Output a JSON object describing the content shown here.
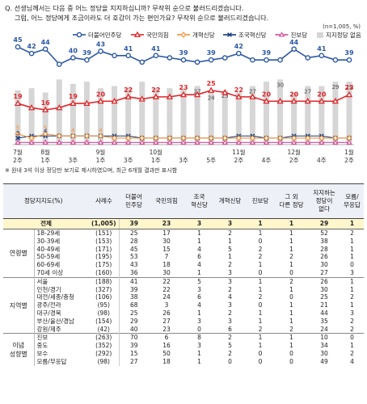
{
  "question": {
    "line1": "Q. 선생님께서는 다음 중 어느 정당을 지지하십니까? 무작위 순으로 불러드리겠습니다.",
    "line2": "그럼, 어느 정당에게 조금이라도 더 호감이 가는 편인가요? 무작위 순으로 불러드리겠습니다.",
    "sample": "(n=1,005, %)"
  },
  "chart_data": {
    "type": "line",
    "x": [
      "7월 2주",
      "",
      "8월 1주",
      "",
      "3주",
      "",
      "9월 1주",
      "",
      "3주",
      "",
      "10월 1주",
      "",
      "3주",
      "",
      "5주",
      "",
      "11월 2주",
      "",
      "4주",
      "",
      "12월 2주",
      "",
      "4주",
      "",
      "1월 2주"
    ],
    "x_labels": [
      {
        "index": 0,
        "line1": "7월",
        "line2": "2주"
      },
      {
        "index": 2,
        "line1": "8월",
        "line2": "1주"
      },
      {
        "index": 4,
        "line1": "",
        "line2": "3주"
      },
      {
        "index": 6,
        "line1": "9월",
        "line2": "1주"
      },
      {
        "index": 8,
        "line1": "",
        "line2": "3주"
      },
      {
        "index": 10,
        "line1": "10월",
        "line2": "1주"
      },
      {
        "index": 12,
        "line1": "",
        "line2": "3주"
      },
      {
        "index": 14,
        "line1": "",
        "line2": "5주"
      },
      {
        "index": 16,
        "line1": "11월",
        "line2": "2주"
      },
      {
        "index": 18,
        "line1": "",
        "line2": "4주"
      },
      {
        "index": 20,
        "line1": "12월",
        "line2": "2주"
      },
      {
        "index": 22,
        "line1": "",
        "line2": "4주"
      },
      {
        "index": 24,
        "line1": "1월",
        "line2": "2주"
      }
    ],
    "legend_position": "top",
    "series": [
      {
        "name": "더불어민주당",
        "color": "#2b57a6",
        "kind": "line",
        "marker": "circle",
        "values": [
          45,
          42,
          44,
          37,
          40,
          39,
          43,
          41,
          41,
          38,
          41,
          40,
          39,
          38,
          39,
          40,
          42,
          39,
          39,
          39,
          44,
          40,
          41,
          39,
          39
        ],
        "labeled": [
          0,
          1,
          2,
          4,
          5,
          6,
          8,
          10,
          12,
          14,
          16,
          18,
          20,
          22,
          24
        ]
      },
      {
        "name": "국민의힘",
        "color": "#e0262a",
        "kind": "line",
        "marker": "triangle",
        "values": [
          19,
          17,
          16,
          17,
          19,
          19,
          20,
          20,
          22,
          21,
          22,
          22,
          23,
          23,
          25,
          24,
          22,
          22,
          20,
          20,
          20,
          20,
          20,
          20,
          23
        ],
        "labeled": [
          0,
          2,
          4,
          6,
          8,
          10,
          12,
          14,
          16,
          18,
          20,
          22,
          24
        ]
      },
      {
        "name": "개혁신당",
        "color": "#f0933b",
        "kind": "line",
        "marker": "diamond",
        "values": [
          5,
          3,
          5,
          4,
          4,
          4,
          4,
          3,
          3,
          3,
          3,
          3,
          3,
          3,
          3,
          3,
          3,
          3,
          3,
          3,
          3,
          3,
          3,
          3,
          3
        ],
        "labeled": [
          0,
          2,
          4,
          6
        ]
      },
      {
        "name": "조국혁신당",
        "color": "#123a7a",
        "kind": "line",
        "marker": "x",
        "values": [
          3,
          4,
          4,
          4,
          4,
          4,
          4,
          4,
          4,
          3,
          3,
          3,
          3,
          3,
          3,
          3,
          4,
          4,
          3,
          3,
          4,
          4,
          4,
          3,
          3
        ],
        "labeled": [
          0,
          2
        ]
      },
      {
        "name": "진보당",
        "color": "#d8459a",
        "kind": "line",
        "marker": "triangle-open",
        "values": [
          1,
          1,
          1,
          1,
          1,
          1,
          1,
          1,
          1,
          1,
          1,
          1,
          1,
          1,
          1,
          1,
          1,
          1,
          1,
          1,
          1,
          1,
          1,
          1,
          1
        ],
        "labeled": []
      },
      {
        "name": "지지정당 없음",
        "color": "#d6d6d6",
        "kind": "bar",
        "values": [
          25,
          26,
          24,
          30,
          28,
          29,
          26,
          27,
          26,
          29,
          26,
          26,
          26,
          27,
          24,
          25,
          24,
          27,
          29,
          30,
          24,
          27,
          27,
          29,
          29
        ],
        "labeled": [
          13,
          14,
          15,
          17,
          19,
          21,
          23,
          24
        ]
      }
    ],
    "ylim": [
      0,
      50
    ],
    "grid": false
  },
  "footnote": "※ 원내 3석 이상 정당만 보기로 제시하였으며, 최근 6개월 결과만 표시함",
  "table": {
    "headers": [
      "정당지지도(%)",
      "사례수",
      "더불어\n민주당",
      "국민의힘",
      "조국\n혁신당",
      "개혁신당",
      "진보당",
      "그 외\n다른 정당",
      "지지하는\n정당이\n없다",
      "모름/\n무응답"
    ],
    "total": {
      "label": "전체",
      "n": "(1,005)",
      "vals": [
        "39",
        "23",
        "3",
        "3",
        "1",
        "1",
        "29",
        "1"
      ]
    },
    "groups": [
      {
        "name": "연령별",
        "rows": [
          {
            "label": "18-29세",
            "n": "(151)",
            "vals": [
              "25",
              "17",
              "1",
              "2",
              "1",
              "1",
              "52",
              "2"
            ]
          },
          {
            "label": "30-39세",
            "n": "(153)",
            "vals": [
              "28",
              "30",
              "1",
              "1",
              "0",
              "1",
              "38",
              "1"
            ]
          },
          {
            "label": "40-49세",
            "n": "(171)",
            "vals": [
              "45",
              "15",
              "4",
              "5",
              "2",
              "1",
              "28",
              "1"
            ]
          },
          {
            "label": "50-59세",
            "n": "(195)",
            "vals": [
              "53",
              "7",
              "6",
              "1",
              "2",
              "2",
              "26",
              "1"
            ]
          },
          {
            "label": "60-69세",
            "n": "(175)",
            "vals": [
              "43",
              "18",
              "4",
              "2",
              "1",
              "1",
              "30",
              "0"
            ]
          },
          {
            "label": "70세 이상",
            "n": "(160)",
            "vals": [
              "36",
              "30",
              "1",
              "3",
              "0",
              "0",
              "27",
              "3"
            ]
          }
        ]
      },
      {
        "name": "지역별",
        "rows": [
          {
            "label": "서울",
            "n": "(188)",
            "vals": [
              "41",
              "22",
              "5",
              "3",
              "1",
              "2",
              "26",
              "1"
            ]
          },
          {
            "label": "인천/경기",
            "n": "(327)",
            "vals": [
              "39",
              "22",
              "3",
              "2",
              "1",
              "1",
              "30",
              "1"
            ]
          },
          {
            "label": "대전/세종/충청",
            "n": "(106)",
            "vals": [
              "38",
              "24",
              "6",
              "4",
              "2",
              "0",
              "25",
              "2"
            ]
          },
          {
            "label": "광주/전라",
            "n": "(95)",
            "vals": [
              "68",
              "3",
              "4",
              "3",
              "0",
              "1",
              "21",
              "1"
            ]
          },
          {
            "label": "대구/경북",
            "n": "(98)",
            "vals": [
              "25",
              "26",
              "1",
              "2",
              "1",
              "1",
              "44",
              "3"
            ]
          },
          {
            "label": "부산/울산/경남",
            "n": "(154)",
            "vals": [
              "29",
              "27",
              "3",
              "3",
              "1",
              "1",
              "35",
              "2"
            ]
          },
          {
            "label": "강원/제주",
            "n": "(42)",
            "vals": [
              "40",
              "23",
              "0",
              "6",
              "2",
              "2",
              "24",
              "2"
            ]
          }
        ]
      },
      {
        "name": "이념\n성향별",
        "rows": [
          {
            "label": "진보",
            "n": "(263)",
            "vals": [
              "70",
              "6",
              "8",
              "2",
              "1",
              "1",
              "10",
              "0"
            ]
          },
          {
            "label": "중도",
            "n": "(352)",
            "vals": [
              "39",
              "16",
              "3",
              "5",
              "1",
              "1",
              "34",
              "1"
            ]
          },
          {
            "label": "보수",
            "n": "(292)",
            "vals": [
              "15",
              "50",
              "1",
              "2",
              "0",
              "0",
              "30",
              "2"
            ]
          },
          {
            "label": "모름/무응답",
            "n": "(98)",
            "vals": [
              "27",
              "18",
              "1",
              "0",
              "0",
              "0",
              "49",
              "4"
            ]
          }
        ]
      }
    ]
  }
}
